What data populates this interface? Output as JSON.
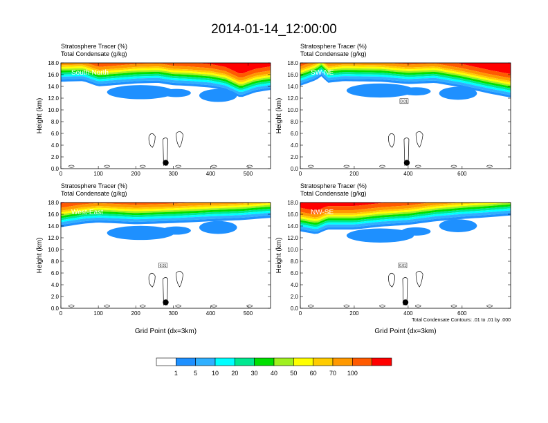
{
  "page": {
    "title": "2014-01-14_12:00:00"
  },
  "palette": [
    "#ffffff",
    "#1e90ff",
    "#30b0ff",
    "#00ffff",
    "#00e890",
    "#00e000",
    "#a0f020",
    "#ffff00",
    "#ffcc00",
    "#ff9900",
    "#ff5a00",
    "#ff0000"
  ],
  "labels": {
    "tracer_title": "Stratosphere Tracer   (%)",
    "condensate_title": "Total Condensate   (g/kg)",
    "ylabel": "Height (km)",
    "xlabel": "Grid Point (dx=3km)",
    "contour_note": "Total Condensate Contours: .01 to .01 by .000",
    "contour_tag": "0.01"
  },
  "chart_data": [
    {
      "type": "heatmap",
      "name": "South-North",
      "xlim": [
        0,
        560
      ],
      "ylim": [
        0,
        18
      ],
      "xticks": [
        0,
        100,
        200,
        300,
        400,
        500
      ],
      "yticks": [
        0.0,
        2.0,
        4.0,
        6.0,
        8.0,
        10.0,
        12.0,
        14.0,
        16.0,
        18.0
      ],
      "tropopause_km": [
        [
          0,
          15.2
        ],
        [
          60,
          15.3
        ],
        [
          100,
          14.4
        ],
        [
          140,
          14.6
        ],
        [
          200,
          14.9
        ],
        [
          260,
          15.0
        ],
        [
          300,
          14.6
        ],
        [
          340,
          14.5
        ],
        [
          400,
          14.2
        ],
        [
          440,
          13.7
        ],
        [
          480,
          12.5
        ],
        [
          520,
          13.4
        ],
        [
          560,
          13.8
        ]
      ],
      "marker": {
        "x": 280,
        "y": 1.0
      },
      "has_tag": false
    },
    {
      "type": "heatmap",
      "name": "SW-NE",
      "xlim": [
        0,
        780
      ],
      "ylim": [
        0,
        18
      ],
      "xticks": [
        0,
        200,
        400,
        600
      ],
      "yticks": [
        0.0,
        2.0,
        4.0,
        6.0,
        8.0,
        10.0,
        12.0,
        14.0,
        16.0,
        18.0
      ],
      "tropopause_km": [
        [
          0,
          14.5
        ],
        [
          60,
          15.5
        ],
        [
          80,
          16.2
        ],
        [
          100,
          15.0
        ],
        [
          160,
          15.3
        ],
        [
          300,
          15.2
        ],
        [
          400,
          14.8
        ],
        [
          500,
          15.0
        ],
        [
          600,
          14.2
        ],
        [
          700,
          13.2
        ],
        [
          780,
          12.5
        ]
      ],
      "marker": {
        "x": 395,
        "y": 1.0
      },
      "has_tag": true
    },
    {
      "type": "heatmap",
      "name": "West-East",
      "xlim": [
        0,
        560
      ],
      "ylim": [
        0,
        18
      ],
      "xticks": [
        0,
        100,
        200,
        300,
        400,
        500
      ],
      "yticks": [
        0.0,
        2.0,
        4.0,
        6.0,
        8.0,
        10.0,
        12.0,
        14.0,
        16.0,
        18.0
      ],
      "tropopause_km": [
        [
          0,
          14.2
        ],
        [
          60,
          14.8
        ],
        [
          100,
          15.0
        ],
        [
          200,
          14.7
        ],
        [
          300,
          14.9
        ],
        [
          400,
          15.2
        ],
        [
          480,
          15.4
        ],
        [
          560,
          15.8
        ]
      ],
      "marker": {
        "x": 280,
        "y": 1.0
      },
      "has_tag": true
    },
    {
      "type": "heatmap",
      "name": "NW-SE",
      "xlim": [
        0,
        780
      ],
      "ylim": [
        0,
        18
      ],
      "xticks": [
        0,
        200,
        400,
        600
      ],
      "yticks": [
        0.0,
        2.0,
        4.0,
        6.0,
        8.0,
        10.0,
        12.0,
        14.0,
        16.0,
        18.0
      ],
      "tropopause_km": [
        [
          0,
          13.5
        ],
        [
          60,
          13.0
        ],
        [
          100,
          13.8
        ],
        [
          200,
          13.8
        ],
        [
          300,
          14.3
        ],
        [
          400,
          14.6
        ],
        [
          500,
          15.2
        ],
        [
          600,
          15.6
        ],
        [
          700,
          15.9
        ],
        [
          780,
          16.2
        ]
      ],
      "marker": {
        "x": 390,
        "y": 1.0
      },
      "has_tag": true
    },
    {
      "type": "colorbar",
      "levels": [
        "1",
        "5",
        "10",
        "20",
        "30",
        "40",
        "50",
        "60",
        "70",
        "100"
      ]
    }
  ]
}
